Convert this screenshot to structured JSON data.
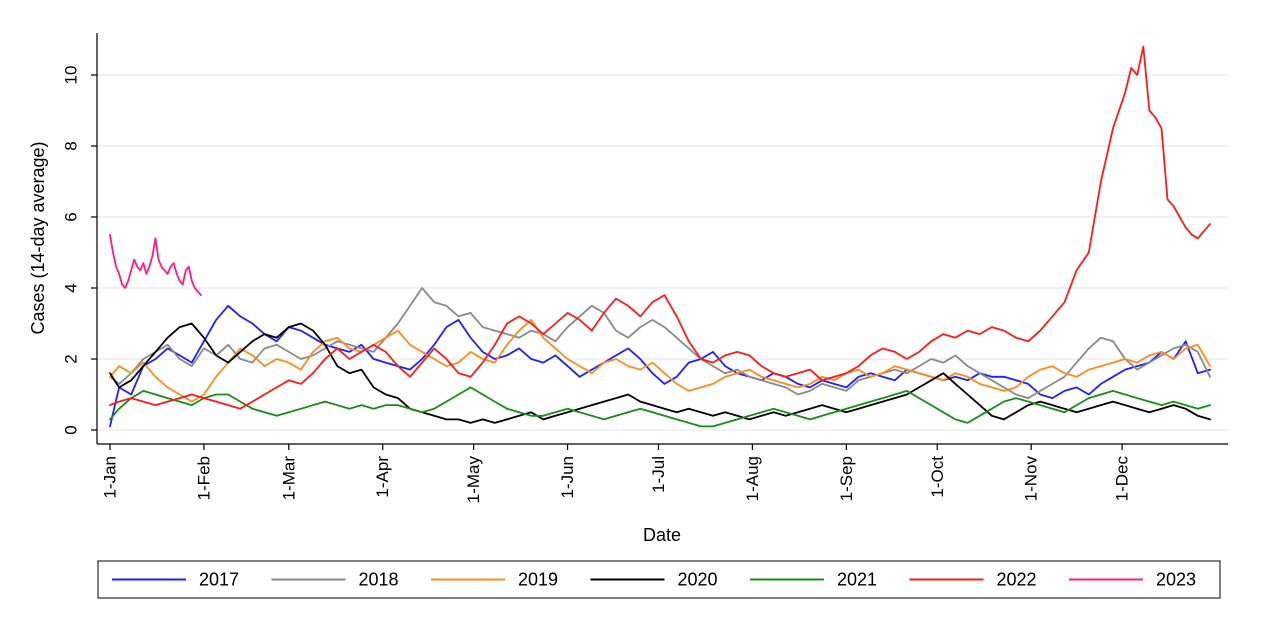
{
  "chart_data": {
    "type": "line",
    "title": "",
    "xlabel": "Date",
    "ylabel": "Cases (14-day average)",
    "ylim": [
      0,
      11
    ],
    "yticks": [
      0,
      2,
      4,
      6,
      8,
      10
    ],
    "x_months": [
      "1-Jan",
      "1-Feb",
      "1-Mar",
      "1-Apr",
      "1-May",
      "1-Jun",
      "1-Jul",
      "1-Aug",
      "1-Sep",
      "1-Oct",
      "1-Nov",
      "1-Dec"
    ],
    "x_unit": "day of year",
    "x_month_day": [
      1,
      32,
      60,
      91,
      121,
      152,
      182,
      213,
      244,
      274,
      305,
      335
    ],
    "xlim": [
      1,
      365
    ],
    "grid": "horizontal",
    "legend_position": "bottom",
    "series": [
      {
        "name": "2017",
        "color": "#1f1fff",
        "x": [
          1,
          4,
          8,
          12,
          16,
          20,
          24,
          28,
          32,
          36,
          40,
          44,
          48,
          52,
          56,
          60,
          64,
          68,
          72,
          76,
          80,
          84,
          88,
          92,
          96,
          100,
          104,
          108,
          112,
          116,
          120,
          124,
          128,
          132,
          136,
          140,
          144,
          148,
          152,
          156,
          160,
          164,
          168,
          172,
          176,
          180,
          184,
          188,
          192,
          196,
          200,
          204,
          208,
          212,
          216,
          220,
          224,
          228,
          232,
          236,
          240,
          244,
          248,
          252,
          256,
          260,
          264,
          268,
          272,
          276,
          280,
          284,
          288,
          292,
          296,
          300,
          304,
          308,
          312,
          316,
          320,
          324,
          328,
          332,
          336,
          340,
          344,
          348,
          352,
          356,
          360,
          364
        ],
        "y": [
          0.1,
          1.2,
          1.0,
          1.8,
          2.0,
          2.3,
          2.1,
          1.9,
          2.5,
          3.1,
          3.5,
          3.2,
          3.0,
          2.7,
          2.5,
          2.9,
          2.8,
          2.6,
          2.4,
          2.3,
          2.2,
          2.4,
          2.0,
          1.9,
          1.8,
          1.7,
          2.0,
          2.4,
          2.9,
          3.1,
          2.6,
          2.2,
          2.0,
          2.1,
          2.3,
          2.0,
          1.9,
          2.1,
          1.8,
          1.5,
          1.7,
          1.9,
          2.1,
          2.3,
          2.0,
          1.6,
          1.3,
          1.5,
          1.9,
          2.0,
          2.2,
          1.8,
          1.6,
          1.5,
          1.4,
          1.6,
          1.5,
          1.3,
          1.2,
          1.4,
          1.3,
          1.2,
          1.5,
          1.6,
          1.5,
          1.4,
          1.7,
          1.6,
          1.5,
          1.4,
          1.5,
          1.4,
          1.6,
          1.5,
          1.5,
          1.4,
          1.3,
          1.0,
          0.9,
          1.1,
          1.2,
          1.0,
          1.3,
          1.5,
          1.7,
          1.8,
          1.9,
          2.2,
          2.0,
          2.5,
          1.6,
          1.7
        ]
      },
      {
        "name": "2018",
        "color": "#8a8a8a",
        "x": [
          1,
          4,
          8,
          12,
          16,
          20,
          24,
          28,
          32,
          36,
          40,
          44,
          48,
          52,
          56,
          60,
          64,
          68,
          72,
          76,
          80,
          84,
          88,
          92,
          96,
          100,
          104,
          108,
          112,
          116,
          120,
          124,
          128,
          132,
          136,
          140,
          144,
          148,
          152,
          156,
          160,
          164,
          168,
          172,
          176,
          180,
          184,
          188,
          192,
          196,
          200,
          204,
          208,
          212,
          216,
          220,
          224,
          228,
          232,
          236,
          240,
          244,
          248,
          252,
          256,
          260,
          264,
          268,
          272,
          276,
          280,
          284,
          288,
          292,
          296,
          300,
          304,
          308,
          312,
          316,
          320,
          324,
          328,
          332,
          336,
          340,
          344,
          348,
          352,
          356,
          360,
          364
        ],
        "y": [
          1.5,
          1.3,
          1.6,
          2.0,
          2.2,
          2.4,
          2.0,
          1.8,
          2.3,
          2.1,
          2.4,
          2.0,
          1.9,
          2.3,
          2.4,
          2.2,
          2.0,
          2.1,
          2.3,
          2.5,
          2.4,
          2.3,
          2.2,
          2.6,
          3.0,
          3.5,
          4.0,
          3.6,
          3.5,
          3.2,
          3.3,
          2.9,
          2.8,
          2.7,
          2.6,
          2.8,
          2.7,
          2.5,
          2.9,
          3.2,
          3.5,
          3.3,
          2.8,
          2.6,
          2.9,
          3.1,
          2.9,
          2.6,
          2.3,
          2.0,
          1.8,
          1.6,
          1.7,
          1.5,
          1.4,
          1.3,
          1.2,
          1.0,
          1.1,
          1.3,
          1.2,
          1.1,
          1.4,
          1.5,
          1.6,
          1.7,
          1.6,
          1.8,
          2.0,
          1.9,
          2.1,
          1.8,
          1.6,
          1.4,
          1.2,
          1.0,
          0.9,
          1.1,
          1.3,
          1.5,
          1.9,
          2.3,
          2.6,
          2.5,
          2.0,
          1.7,
          1.9,
          2.1,
          2.3,
          2.4,
          2.2,
          1.5
        ]
      },
      {
        "name": "2019",
        "color": "#ff8c1a",
        "x": [
          1,
          4,
          8,
          12,
          16,
          20,
          24,
          28,
          32,
          36,
          40,
          44,
          48,
          52,
          56,
          60,
          64,
          68,
          72,
          76,
          80,
          84,
          88,
          92,
          96,
          100,
          104,
          108,
          112,
          116,
          120,
          124,
          128,
          132,
          136,
          140,
          144,
          148,
          152,
          156,
          160,
          164,
          168,
          172,
          176,
          180,
          184,
          188,
          192,
          196,
          200,
          204,
          208,
          212,
          216,
          220,
          224,
          228,
          232,
          236,
          240,
          244,
          248,
          252,
          256,
          260,
          264,
          268,
          272,
          276,
          280,
          284,
          288,
          292,
          296,
          300,
          304,
          308,
          312,
          316,
          320,
          324,
          328,
          332,
          336,
          340,
          344,
          348,
          352,
          356,
          360,
          364
        ],
        "y": [
          1.5,
          1.8,
          1.6,
          1.9,
          1.5,
          1.2,
          1.0,
          0.8,
          1.0,
          1.5,
          1.9,
          2.3,
          2.1,
          1.8,
          2.0,
          1.9,
          1.7,
          2.2,
          2.5,
          2.6,
          2.3,
          2.2,
          2.4,
          2.6,
          2.8,
          2.4,
          2.2,
          2.0,
          1.8,
          1.9,
          2.2,
          2.0,
          1.9,
          2.4,
          2.8,
          3.1,
          2.6,
          2.3,
          2.0,
          1.8,
          1.6,
          1.9,
          2.0,
          1.8,
          1.7,
          1.9,
          1.6,
          1.3,
          1.1,
          1.2,
          1.3,
          1.5,
          1.6,
          1.7,
          1.5,
          1.4,
          1.3,
          1.2,
          1.3,
          1.5,
          1.4,
          1.6,
          1.7,
          1.5,
          1.6,
          1.8,
          1.7,
          1.6,
          1.5,
          1.4,
          1.6,
          1.5,
          1.3,
          1.2,
          1.1,
          1.2,
          1.5,
          1.7,
          1.8,
          1.6,
          1.5,
          1.7,
          1.8,
          1.9,
          2.0,
          1.9,
          2.1,
          2.2,
          2.0,
          2.3,
          2.4,
          1.8
        ]
      },
      {
        "name": "2020",
        "color": "#000000",
        "x": [
          1,
          4,
          8,
          12,
          16,
          20,
          24,
          28,
          32,
          36,
          40,
          44,
          48,
          52,
          56,
          60,
          64,
          68,
          72,
          76,
          80,
          84,
          88,
          92,
          96,
          100,
          104,
          108,
          112,
          116,
          120,
          124,
          128,
          132,
          136,
          140,
          144,
          148,
          152,
          156,
          160,
          164,
          168,
          172,
          176,
          180,
          184,
          188,
          192,
          196,
          200,
          204,
          208,
          212,
          216,
          220,
          224,
          228,
          232,
          236,
          240,
          244,
          248,
          252,
          256,
          260,
          264,
          268,
          272,
          276,
          280,
          284,
          288,
          292,
          296,
          300,
          304,
          308,
          312,
          316,
          320,
          324,
          328,
          332,
          336,
          340,
          344,
          348,
          352,
          356,
          360,
          364
        ],
        "y": [
          1.6,
          1.2,
          1.4,
          1.8,
          2.2,
          2.6,
          2.9,
          3.0,
          2.6,
          2.1,
          1.9,
          2.2,
          2.5,
          2.7,
          2.6,
          2.9,
          3.0,
          2.8,
          2.4,
          1.8,
          1.6,
          1.7,
          1.2,
          1.0,
          0.9,
          0.6,
          0.5,
          0.4,
          0.3,
          0.3,
          0.2,
          0.3,
          0.2,
          0.3,
          0.4,
          0.5,
          0.3,
          0.4,
          0.5,
          0.6,
          0.7,
          0.8,
          0.9,
          1.0,
          0.8,
          0.7,
          0.6,
          0.5,
          0.6,
          0.5,
          0.4,
          0.5,
          0.4,
          0.3,
          0.4,
          0.5,
          0.4,
          0.5,
          0.6,
          0.7,
          0.6,
          0.5,
          0.6,
          0.7,
          0.8,
          0.9,
          1.0,
          1.2,
          1.4,
          1.6,
          1.3,
          1.0,
          0.7,
          0.4,
          0.3,
          0.5,
          0.7,
          0.8,
          0.7,
          0.6,
          0.5,
          0.6,
          0.7,
          0.8,
          0.7,
          0.6,
          0.5,
          0.6,
          0.7,
          0.6,
          0.4,
          0.3
        ]
      },
      {
        "name": "2021",
        "color": "#1a8c1a",
        "x": [
          1,
          4,
          8,
          12,
          16,
          20,
          24,
          28,
          32,
          36,
          40,
          44,
          48,
          52,
          56,
          60,
          64,
          68,
          72,
          76,
          80,
          84,
          88,
          92,
          96,
          100,
          104,
          108,
          112,
          116,
          120,
          124,
          128,
          132,
          136,
          140,
          144,
          148,
          152,
          156,
          160,
          164,
          168,
          172,
          176,
          180,
          184,
          188,
          192,
          196,
          200,
          204,
          208,
          212,
          216,
          220,
          224,
          228,
          232,
          236,
          240,
          244,
          248,
          252,
          256,
          260,
          264,
          268,
          272,
          276,
          280,
          284,
          288,
          292,
          296,
          300,
          304,
          308,
          312,
          316,
          320,
          324,
          328,
          332,
          336,
          340,
          344,
          348,
          352,
          356,
          360,
          364
        ],
        "y": [
          0.3,
          0.6,
          0.9,
          1.1,
          1.0,
          0.9,
          0.8,
          0.7,
          0.9,
          1.0,
          1.0,
          0.8,
          0.6,
          0.5,
          0.4,
          0.5,
          0.6,
          0.7,
          0.8,
          0.7,
          0.6,
          0.7,
          0.6,
          0.7,
          0.7,
          0.6,
          0.5,
          0.6,
          0.8,
          1.0,
          1.2,
          1.0,
          0.8,
          0.6,
          0.5,
          0.4,
          0.4,
          0.5,
          0.6,
          0.5,
          0.4,
          0.3,
          0.4,
          0.5,
          0.6,
          0.5,
          0.4,
          0.3,
          0.2,
          0.1,
          0.1,
          0.2,
          0.3,
          0.4,
          0.5,
          0.6,
          0.5,
          0.4,
          0.3,
          0.4,
          0.5,
          0.6,
          0.7,
          0.8,
          0.9,
          1.0,
          1.1,
          0.9,
          0.7,
          0.5,
          0.3,
          0.2,
          0.4,
          0.6,
          0.8,
          0.9,
          0.8,
          0.7,
          0.6,
          0.5,
          0.7,
          0.9,
          1.0,
          1.1,
          1.0,
          0.9,
          0.8,
          0.7,
          0.8,
          0.7,
          0.6,
          0.7
        ]
      },
      {
        "name": "2022",
        "color": "#ff1a1a",
        "x": [
          1,
          4,
          8,
          12,
          16,
          20,
          24,
          28,
          32,
          36,
          40,
          44,
          48,
          52,
          56,
          60,
          64,
          68,
          72,
          76,
          80,
          84,
          88,
          92,
          96,
          100,
          104,
          108,
          112,
          116,
          120,
          124,
          128,
          132,
          136,
          140,
          144,
          148,
          152,
          156,
          160,
          164,
          168,
          172,
          176,
          180,
          184,
          188,
          192,
          196,
          200,
          204,
          208,
          212,
          216,
          220,
          224,
          228,
          232,
          236,
          240,
          244,
          248,
          252,
          256,
          260,
          264,
          268,
          272,
          276,
          280,
          284,
          288,
          292,
          296,
          300,
          304,
          308,
          312,
          316,
          320,
          324,
          328,
          332,
          336,
          338,
          340,
          342,
          344,
          346,
          348,
          350,
          352,
          354,
          356,
          358,
          360,
          362,
          364
        ],
        "y": [
          0.7,
          0.8,
          0.9,
          0.8,
          0.7,
          0.8,
          0.9,
          1.0,
          0.9,
          0.8,
          0.7,
          0.6,
          0.8,
          1.0,
          1.2,
          1.4,
          1.3,
          1.6,
          2.0,
          2.3,
          2.0,
          2.2,
          2.4,
          2.2,
          1.8,
          1.5,
          1.9,
          2.3,
          2.0,
          1.6,
          1.5,
          1.9,
          2.4,
          3.0,
          3.2,
          3.0,
          2.7,
          3.0,
          3.3,
          3.1,
          2.8,
          3.3,
          3.7,
          3.5,
          3.2,
          3.6,
          3.8,
          3.2,
          2.5,
          2.0,
          1.9,
          2.1,
          2.2,
          2.1,
          1.8,
          1.6,
          1.5,
          1.6,
          1.7,
          1.4,
          1.5,
          1.6,
          1.8,
          2.1,
          2.3,
          2.2,
          2.0,
          2.2,
          2.5,
          2.7,
          2.6,
          2.8,
          2.7,
          2.9,
          2.8,
          2.6,
          2.5,
          2.8,
          3.2,
          3.6,
          4.5,
          5.0,
          7.0,
          8.5,
          9.5,
          10.2,
          10.0,
          10.8,
          9.0,
          8.8,
          8.5,
          6.5,
          6.3,
          6.0,
          5.7,
          5.5,
          5.4,
          5.6,
          5.8
        ]
      },
      {
        "name": "2023",
        "color": "#ff1a8c",
        "x": [
          1,
          2,
          3,
          4,
          5,
          6,
          7,
          8,
          9,
          10,
          11,
          12,
          13,
          14,
          15,
          16,
          17,
          18,
          19,
          20,
          21,
          22,
          23,
          24,
          25,
          26,
          27,
          28,
          29,
          30,
          31
        ],
        "y": [
          5.5,
          5.0,
          4.6,
          4.4,
          4.1,
          4.0,
          4.2,
          4.5,
          4.8,
          4.6,
          4.5,
          4.7,
          4.4,
          4.6,
          4.9,
          5.4,
          4.8,
          4.6,
          4.5,
          4.4,
          4.6,
          4.7,
          4.4,
          4.2,
          4.1,
          4.5,
          4.6,
          4.2,
          4.0,
          3.9,
          3.8
        ]
      }
    ]
  }
}
